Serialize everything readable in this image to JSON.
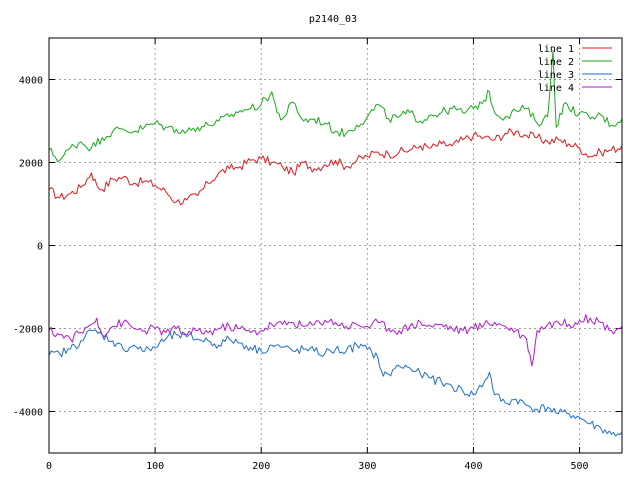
{
  "chart_data": {
    "type": "line",
    "title": "p2140_03",
    "xlabel": "",
    "ylabel": "",
    "xlim": [
      0,
      540
    ],
    "ylim": [
      -5000,
      5000
    ],
    "x_ticks": [
      0,
      100,
      200,
      300,
      400,
      500
    ],
    "y_ticks": [
      -4000,
      -2000,
      0,
      2000,
      4000
    ],
    "grid": true,
    "legend_position": "top-right",
    "series": [
      {
        "name": "line 1",
        "color": "#e41a1c",
        "points": [
          [
            0,
            1350
          ],
          [
            10,
            1150
          ],
          [
            20,
            1250
          ],
          [
            30,
            1400
          ],
          [
            40,
            1750
          ],
          [
            45,
            1450
          ],
          [
            50,
            1350
          ],
          [
            60,
            1600
          ],
          [
            70,
            1650
          ],
          [
            80,
            1500
          ],
          [
            90,
            1550
          ],
          [
            100,
            1450
          ],
          [
            110,
            1300
          ],
          [
            120,
            1050
          ],
          [
            130,
            1100
          ],
          [
            140,
            1200
          ],
          [
            150,
            1500
          ],
          [
            160,
            1750
          ],
          [
            170,
            1850
          ],
          [
            180,
            1900
          ],
          [
            190,
            2050
          ],
          [
            200,
            2100
          ],
          [
            210,
            2000
          ],
          [
            220,
            1900
          ],
          [
            230,
            1750
          ],
          [
            240,
            2000
          ],
          [
            250,
            1850
          ],
          [
            260,
            1950
          ],
          [
            270,
            2050
          ],
          [
            280,
            1900
          ],
          [
            290,
            2050
          ],
          [
            300,
            2150
          ],
          [
            310,
            2250
          ],
          [
            320,
            2200
          ],
          [
            330,
            2250
          ],
          [
            340,
            2300
          ],
          [
            350,
            2400
          ],
          [
            360,
            2350
          ],
          [
            370,
            2450
          ],
          [
            380,
            2400
          ],
          [
            390,
            2550
          ],
          [
            400,
            2650
          ],
          [
            410,
            2600
          ],
          [
            420,
            2550
          ],
          [
            430,
            2700
          ],
          [
            440,
            2750
          ],
          [
            450,
            2650
          ],
          [
            460,
            2600
          ],
          [
            470,
            2500
          ],
          [
            480,
            2550
          ],
          [
            490,
            2450
          ],
          [
            500,
            2350
          ],
          [
            510,
            2150
          ],
          [
            520,
            2250
          ],
          [
            530,
            2300
          ],
          [
            540,
            2400
          ]
        ]
      },
      {
        "name": "line 2",
        "color": "#1aaa1a",
        "points": [
          [
            0,
            2300
          ],
          [
            10,
            2050
          ],
          [
            20,
            2350
          ],
          [
            30,
            2500
          ],
          [
            40,
            2350
          ],
          [
            50,
            2600
          ],
          [
            60,
            2750
          ],
          [
            70,
            2800
          ],
          [
            80,
            2750
          ],
          [
            90,
            2850
          ],
          [
            100,
            2950
          ],
          [
            110,
            2850
          ],
          [
            120,
            2800
          ],
          [
            130,
            2750
          ],
          [
            140,
            2850
          ],
          [
            150,
            2900
          ],
          [
            160,
            3000
          ],
          [
            170,
            3100
          ],
          [
            180,
            3250
          ],
          [
            190,
            3300
          ],
          [
            200,
            3400
          ],
          [
            210,
            3700
          ],
          [
            215,
            3200
          ],
          [
            220,
            3050
          ],
          [
            230,
            3450
          ],
          [
            240,
            3000
          ],
          [
            250,
            3050
          ],
          [
            260,
            2950
          ],
          [
            270,
            2750
          ],
          [
            280,
            2700
          ],
          [
            290,
            2900
          ],
          [
            300,
            3100
          ],
          [
            310,
            3400
          ],
          [
            320,
            3050
          ],
          [
            330,
            3100
          ],
          [
            340,
            3200
          ],
          [
            350,
            3000
          ],
          [
            360,
            3150
          ],
          [
            370,
            3200
          ],
          [
            380,
            3300
          ],
          [
            390,
            3200
          ],
          [
            400,
            3300
          ],
          [
            410,
            3500
          ],
          [
            415,
            3700
          ],
          [
            420,
            3200
          ],
          [
            430,
            3100
          ],
          [
            440,
            3250
          ],
          [
            450,
            3300
          ],
          [
            460,
            2950
          ],
          [
            470,
            3100
          ],
          [
            475,
            4700
          ],
          [
            478,
            2850
          ],
          [
            485,
            3400
          ],
          [
            490,
            3300
          ],
          [
            500,
            3200
          ],
          [
            510,
            3050
          ],
          [
            520,
            3150
          ],
          [
            530,
            2900
          ],
          [
            540,
            3050
          ]
        ]
      },
      {
        "name": "line 3",
        "color": "#1e6fd0",
        "points": [
          [
            0,
            -2650
          ],
          [
            10,
            -2600
          ],
          [
            20,
            -2500
          ],
          [
            30,
            -2300
          ],
          [
            40,
            -2050
          ],
          [
            50,
            -2150
          ],
          [
            60,
            -2300
          ],
          [
            70,
            -2500
          ],
          [
            80,
            -2400
          ],
          [
            90,
            -2550
          ],
          [
            100,
            -2450
          ],
          [
            110,
            -2250
          ],
          [
            120,
            -2150
          ],
          [
            130,
            -2200
          ],
          [
            140,
            -2250
          ],
          [
            150,
            -2300
          ],
          [
            160,
            -2400
          ],
          [
            170,
            -2250
          ],
          [
            180,
            -2350
          ],
          [
            190,
            -2450
          ],
          [
            200,
            -2550
          ],
          [
            210,
            -2400
          ],
          [
            220,
            -2450
          ],
          [
            230,
            -2550
          ],
          [
            240,
            -2500
          ],
          [
            250,
            -2550
          ],
          [
            260,
            -2600
          ],
          [
            270,
            -2500
          ],
          [
            280,
            -2550
          ],
          [
            290,
            -2400
          ],
          [
            300,
            -2500
          ],
          [
            310,
            -2700
          ],
          [
            315,
            -3150
          ],
          [
            320,
            -3100
          ],
          [
            330,
            -2900
          ],
          [
            340,
            -2950
          ],
          [
            350,
            -3100
          ],
          [
            360,
            -3200
          ],
          [
            370,
            -3300
          ],
          [
            380,
            -3400
          ],
          [
            390,
            -3500
          ],
          [
            400,
            -3600
          ],
          [
            410,
            -3300
          ],
          [
            415,
            -3050
          ],
          [
            420,
            -3600
          ],
          [
            430,
            -3800
          ],
          [
            440,
            -3700
          ],
          [
            450,
            -3850
          ],
          [
            460,
            -3950
          ],
          [
            470,
            -3900
          ],
          [
            480,
            -4050
          ],
          [
            490,
            -4050
          ],
          [
            500,
            -4150
          ],
          [
            510,
            -4300
          ],
          [
            520,
            -4400
          ],
          [
            530,
            -4550
          ],
          [
            540,
            -4500
          ]
        ]
      },
      {
        "name": "line 4",
        "color": "#b01ad0",
        "points": [
          [
            0,
            -2050
          ],
          [
            10,
            -2150
          ],
          [
            20,
            -2250
          ],
          [
            30,
            -2100
          ],
          [
            40,
            -1900
          ],
          [
            45,
            -1750
          ],
          [
            50,
            -2150
          ],
          [
            60,
            -1950
          ],
          [
            70,
            -1850
          ],
          [
            80,
            -2000
          ],
          [
            90,
            -2050
          ],
          [
            100,
            -2000
          ],
          [
            110,
            -2100
          ],
          [
            120,
            -2000
          ],
          [
            130,
            -2150
          ],
          [
            140,
            -2050
          ],
          [
            150,
            -2100
          ],
          [
            160,
            -2000
          ],
          [
            170,
            -1950
          ],
          [
            180,
            -2000
          ],
          [
            190,
            -2100
          ],
          [
            200,
            -2050
          ],
          [
            210,
            -1900
          ],
          [
            220,
            -1900
          ],
          [
            230,
            -1850
          ],
          [
            240,
            -1950
          ],
          [
            250,
            -1900
          ],
          [
            260,
            -1800
          ],
          [
            270,
            -1850
          ],
          [
            280,
            -1950
          ],
          [
            290,
            -1900
          ],
          [
            300,
            -1950
          ],
          [
            310,
            -1850
          ],
          [
            320,
            -2000
          ],
          [
            330,
            -2050
          ],
          [
            340,
            -1950
          ],
          [
            350,
            -1850
          ],
          [
            360,
            -1950
          ],
          [
            370,
            -1900
          ],
          [
            380,
            -2000
          ],
          [
            390,
            -2050
          ],
          [
            400,
            -2000
          ],
          [
            410,
            -1900
          ],
          [
            420,
            -1850
          ],
          [
            430,
            -1950
          ],
          [
            440,
            -2050
          ],
          [
            450,
            -2250
          ],
          [
            455,
            -2900
          ],
          [
            460,
            -2050
          ],
          [
            470,
            -1900
          ],
          [
            480,
            -1850
          ],
          [
            490,
            -1900
          ],
          [
            500,
            -1800
          ],
          [
            510,
            -1750
          ],
          [
            520,
            -1850
          ],
          [
            530,
            -2050
          ],
          [
            540,
            -1950
          ]
        ]
      }
    ]
  }
}
